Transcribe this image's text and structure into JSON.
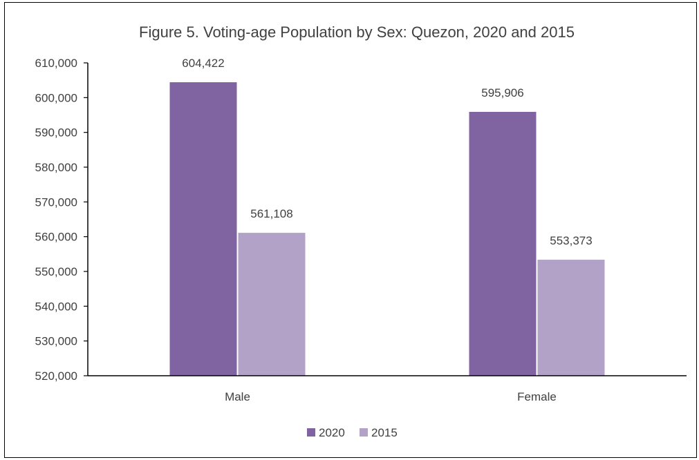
{
  "chart_data": {
    "type": "bar",
    "title": "Figure 5. Voting-age Population by Sex: Quezon, 2020 and 2015",
    "xlabel": "",
    "ylabel": "",
    "categories": [
      "Male",
      "Female"
    ],
    "series": [
      {
        "name": "2020",
        "color": "#8064a2",
        "values": [
          604422,
          595906
        ],
        "labels": [
          "604,422",
          "595,906"
        ]
      },
      {
        "name": "2015",
        "color": "#b3a2c7",
        "values": [
          561108,
          553373
        ],
        "labels": [
          "561,108",
          "553,373"
        ]
      }
    ],
    "ylim": [
      520000,
      610000
    ],
    "yticks": [
      520000,
      530000,
      540000,
      550000,
      560000,
      570000,
      580000,
      590000,
      600000,
      610000
    ],
    "ytick_labels": [
      "520,000",
      "530,000",
      "540,000",
      "550,000",
      "560,000",
      "570,000",
      "580,000",
      "590,000",
      "600,000",
      "610,000"
    ],
    "grid": false,
    "legend_position": "bottom",
    "axis_color": "#000000"
  }
}
